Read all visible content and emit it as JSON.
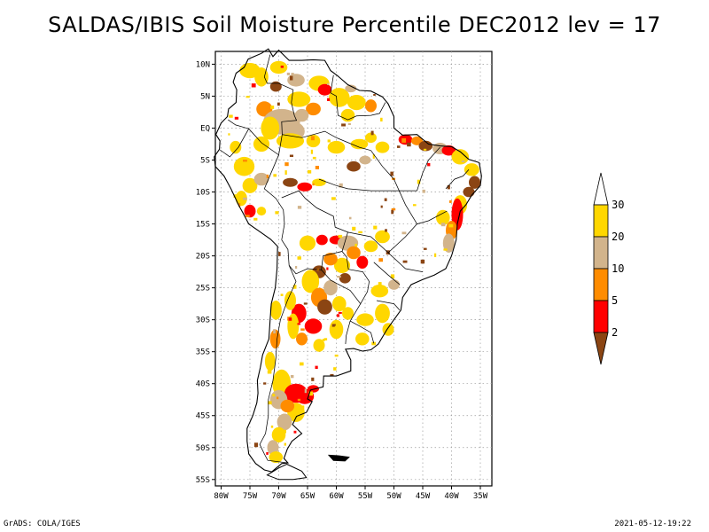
{
  "title": "SALDAS/IBIS Soil Moisture Percentile DEC2012 lev = 17",
  "footer": {
    "left": "GrADS: COLA/IGES",
    "right": "2021-05-12-19:22"
  },
  "axes": {
    "lon_labels": [
      "80W",
      "75W",
      "70W",
      "65W",
      "60W",
      "55W",
      "50W",
      "45W",
      "40W",
      "35W"
    ],
    "lat_labels": [
      "10N",
      "5N",
      "EQ",
      "5S",
      "10S",
      "15S",
      "20S",
      "25S",
      "30S",
      "35S",
      "40S",
      "45S",
      "50S",
      "55S"
    ],
    "lon_range": [
      -81,
      -33
    ],
    "lat_range": [
      -56,
      12
    ],
    "grid": true
  },
  "colorbar": {
    "labels": [
      "30",
      "20",
      "10",
      "5",
      "2"
    ],
    "bins": [
      {
        "range": "above 30",
        "color": "#ffffff"
      },
      {
        "range": "20-30",
        "color": "#ffd700"
      },
      {
        "range": "10-20",
        "color": "#d2b48c"
      },
      {
        "range": "5-10",
        "color": "#ff8c00"
      },
      {
        "range": "2-5",
        "color": "#ff0000"
      },
      {
        "range": "below 2",
        "color": "#8b4513"
      }
    ]
  },
  "colors": {
    "yellow": "#ffd700",
    "tan": "#d2b48c",
    "orange": "#ff8c00",
    "red": "#ff0000",
    "brown": "#8b4513"
  }
}
